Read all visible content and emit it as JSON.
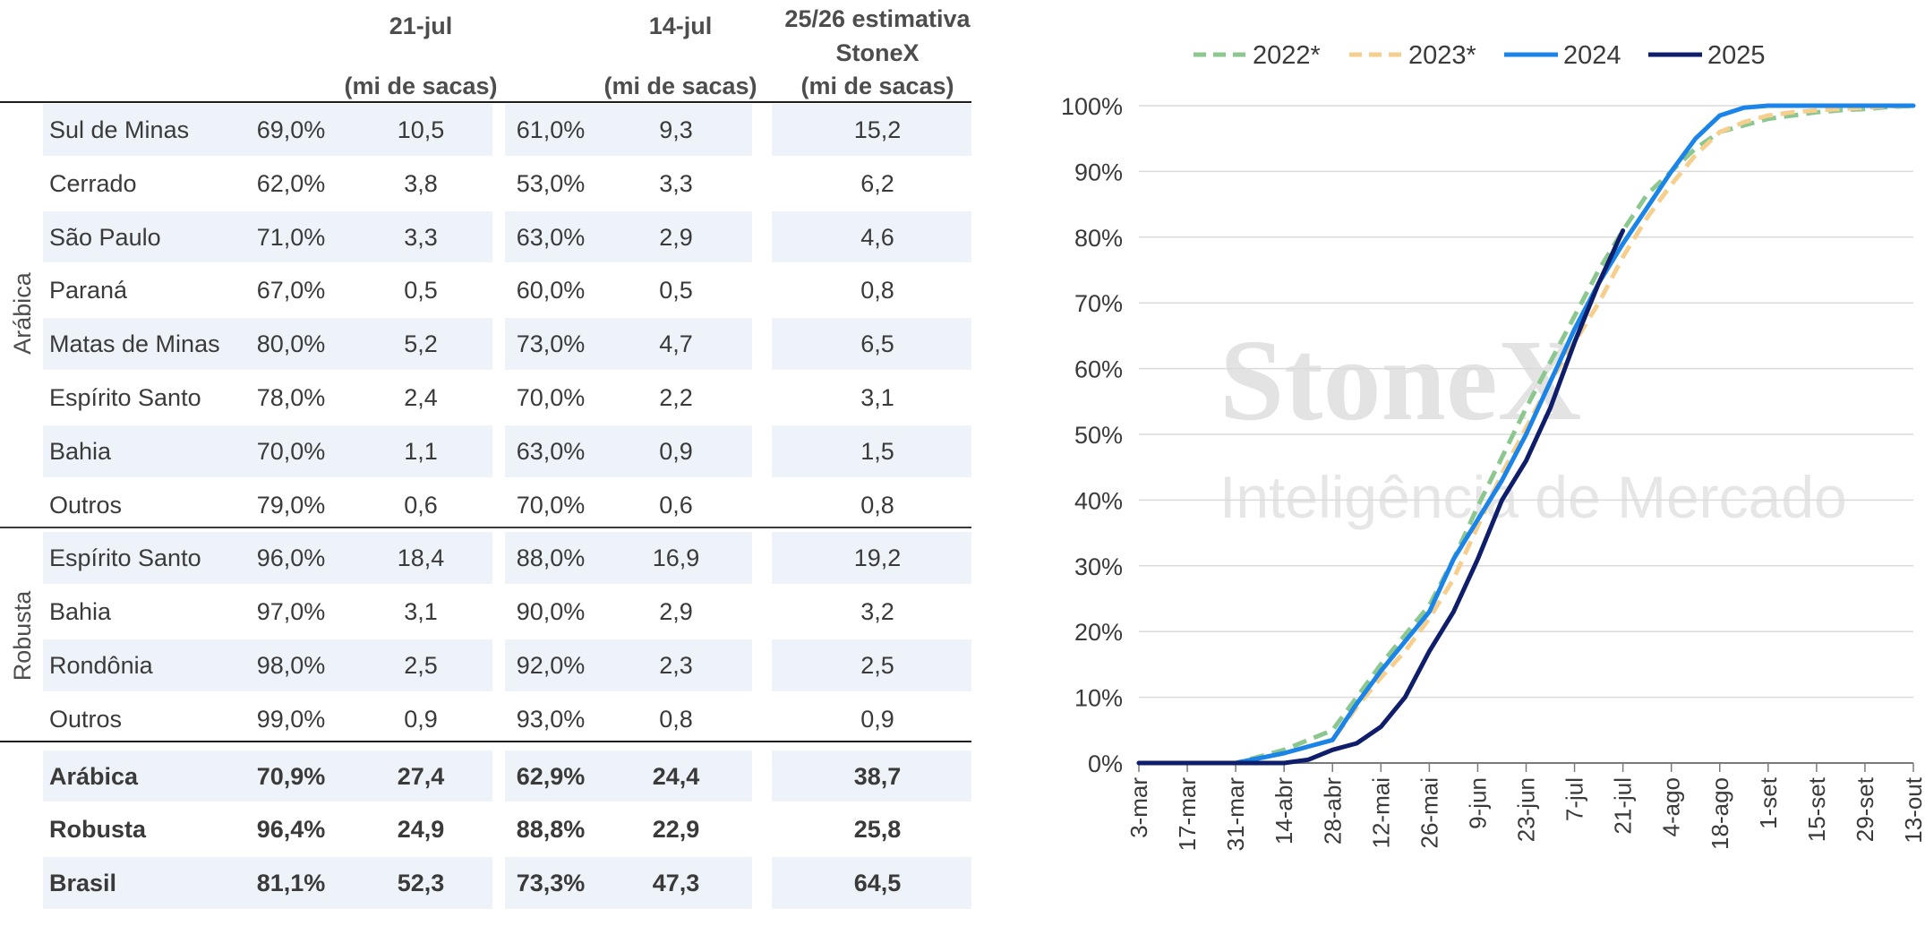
{
  "table": {
    "headers": {
      "week1": "21-jul",
      "week1_unit": "(mi de sacas)",
      "week2": "14-jul",
      "week2_unit": "(mi de sacas)",
      "estimate_line1": "25/26 estimativa",
      "estimate_line2": "StoneX",
      "estimate_unit": "(mi de sacas)"
    },
    "group_labels": {
      "arabica": "Arábica",
      "robusta": "Robusta"
    },
    "rows": [
      {
        "name": "Sul de Minas",
        "pct1": "69,0%",
        "val1": "10,5",
        "pct2": "61,0%",
        "val2": "9,3",
        "est": "15,2"
      },
      {
        "name": "Cerrado",
        "pct1": "62,0%",
        "val1": "3,8",
        "pct2": "53,0%",
        "val2": "3,3",
        "est": "6,2"
      },
      {
        "name": "São Paulo",
        "pct1": "71,0%",
        "val1": "3,3",
        "pct2": "63,0%",
        "val2": "2,9",
        "est": "4,6"
      },
      {
        "name": "Paraná",
        "pct1": "67,0%",
        "val1": "0,5",
        "pct2": "60,0%",
        "val2": "0,5",
        "est": "0,8"
      },
      {
        "name": "Matas de Minas",
        "pct1": "80,0%",
        "val1": "5,2",
        "pct2": "73,0%",
        "val2": "4,7",
        "est": "6,5"
      },
      {
        "name": "Espírito Santo",
        "pct1": "78,0%",
        "val1": "2,4",
        "pct2": "70,0%",
        "val2": "2,2",
        "est": "3,1"
      },
      {
        "name": "Bahia",
        "pct1": "70,0%",
        "val1": "1,1",
        "pct2": "63,0%",
        "val2": "0,9",
        "est": "1,5"
      },
      {
        "name": "Outros",
        "pct1": "79,0%",
        "val1": "0,6",
        "pct2": "70,0%",
        "val2": "0,6",
        "est": "0,8"
      },
      {
        "name": "Espírito Santo",
        "pct1": "96,0%",
        "val1": "18,4",
        "pct2": "88,0%",
        "val2": "16,9",
        "est": "19,2"
      },
      {
        "name": "Bahia",
        "pct1": "97,0%",
        "val1": "3,1",
        "pct2": "90,0%",
        "val2": "2,9",
        "est": "3,2"
      },
      {
        "name": "Rondônia",
        "pct1": "98,0%",
        "val1": "2,5",
        "pct2": "92,0%",
        "val2": "2,3",
        "est": "2,5"
      },
      {
        "name": "Outros",
        "pct1": "99,0%",
        "val1": "0,9",
        "pct2": "93,0%",
        "val2": "0,8",
        "est": "0,9"
      }
    ],
    "totals": [
      {
        "name": "Arábica",
        "pct1": "70,9%",
        "val1": "27,4",
        "pct2": "62,9%",
        "val2": "24,4",
        "est": "38,7"
      },
      {
        "name": "Robusta",
        "pct1": "96,4%",
        "val1": "24,9",
        "pct2": "88,8%",
        "val2": "22,9",
        "est": "25,8"
      },
      {
        "name": "Brasil",
        "pct1": "81,1%",
        "val1": "52,3",
        "pct2": "73,3%",
        "val2": "47,3",
        "est": "64,5"
      }
    ]
  },
  "watermark": {
    "brand": "StoneX",
    "tagline": "Inteligência de Mercado"
  },
  "chart_data": {
    "type": "line",
    "x": [
      "3-mar",
      "17-mar",
      "31-mar",
      "14-abr",
      "28-abr",
      "12-mai",
      "26-mai",
      "9-jun",
      "23-jun",
      "7-jul",
      "21-jul",
      "4-ago",
      "18-ago",
      "1-set",
      "15-set",
      "29-set",
      "13-out"
    ],
    "ylim": [
      0,
      100
    ],
    "yticks": [
      "0%",
      "10%",
      "20%",
      "30%",
      "40%",
      "50%",
      "60%",
      "70%",
      "80%",
      "90%",
      "100%"
    ],
    "grid": true,
    "legend_position": "top",
    "series": [
      {
        "name": "2022*",
        "color": "#8cc78f",
        "dashed": true,
        "points": [
          [
            0,
            0
          ],
          [
            1,
            0
          ],
          [
            2,
            0
          ],
          [
            3,
            2
          ],
          [
            3.5,
            3.5
          ],
          [
            4,
            5
          ],
          [
            4.5,
            10
          ],
          [
            5,
            15
          ],
          [
            5.5,
            19.5
          ],
          [
            6,
            24
          ],
          [
            6.5,
            31
          ],
          [
            7,
            39
          ],
          [
            7.5,
            46.5
          ],
          [
            8,
            54
          ],
          [
            8.5,
            61
          ],
          [
            9,
            68
          ],
          [
            9.5,
            75
          ],
          [
            10,
            81
          ],
          [
            10.5,
            86.5
          ],
          [
            11,
            90
          ],
          [
            11.5,
            93.5
          ],
          [
            12,
            96
          ],
          [
            12.5,
            97
          ],
          [
            13,
            98
          ],
          [
            13.5,
            98.5
          ],
          [
            14,
            99
          ],
          [
            14.5,
            99.3
          ],
          [
            15,
            99.5
          ],
          [
            15.5,
            99.8
          ],
          [
            16,
            100
          ]
        ]
      },
      {
        "name": "2023*",
        "color": "#f6cf8e",
        "dashed": true,
        "points": [
          [
            0,
            0
          ],
          [
            1,
            0
          ],
          [
            2,
            0
          ],
          [
            3,
            1.5
          ],
          [
            3.5,
            2.5
          ],
          [
            4,
            3.5
          ],
          [
            4.5,
            8.5
          ],
          [
            5,
            13
          ],
          [
            5.5,
            17
          ],
          [
            6,
            22
          ],
          [
            6.5,
            28
          ],
          [
            7,
            36
          ],
          [
            7.5,
            44
          ],
          [
            8,
            51
          ],
          [
            8.5,
            58
          ],
          [
            9,
            64
          ],
          [
            9.5,
            70
          ],
          [
            10,
            77
          ],
          [
            10.5,
            83
          ],
          [
            11,
            88
          ],
          [
            11.5,
            92.5
          ],
          [
            12,
            96
          ],
          [
            12.5,
            97.5
          ],
          [
            13,
            98.5
          ],
          [
            13.5,
            99
          ],
          [
            14,
            99.3
          ],
          [
            14.5,
            99.5
          ],
          [
            15,
            99.7
          ],
          [
            15.5,
            99.9
          ],
          [
            16,
            100
          ]
        ]
      },
      {
        "name": "2024",
        "color": "#1a84e8",
        "dashed": false,
        "points": [
          [
            0,
            0
          ],
          [
            1,
            0
          ],
          [
            2,
            0
          ],
          [
            3,
            1.5
          ],
          [
            3.5,
            2.5
          ],
          [
            4,
            3.5
          ],
          [
            4.5,
            9
          ],
          [
            5,
            14
          ],
          [
            5.5,
            18.5
          ],
          [
            6,
            23
          ],
          [
            6.5,
            31
          ],
          [
            7,
            37
          ],
          [
            7.5,
            43
          ],
          [
            8,
            50
          ],
          [
            8.5,
            58
          ],
          [
            9,
            66
          ],
          [
            9.5,
            73
          ],
          [
            10,
            79
          ],
          [
            10.5,
            84.5
          ],
          [
            11,
            90
          ],
          [
            11.5,
            95
          ],
          [
            12,
            98.5
          ],
          [
            12.5,
            99.7
          ],
          [
            13,
            100
          ],
          [
            14,
            100
          ],
          [
            15,
            100
          ],
          [
            16,
            100
          ]
        ]
      },
      {
        "name": "2025",
        "color": "#0f1e6b",
        "dashed": false,
        "points": [
          [
            0,
            0
          ],
          [
            1,
            0
          ],
          [
            2,
            0
          ],
          [
            3,
            0
          ],
          [
            3.5,
            0.5
          ],
          [
            4,
            2
          ],
          [
            4.5,
            3
          ],
          [
            5,
            5.5
          ],
          [
            5.5,
            10
          ],
          [
            6,
            17
          ],
          [
            6.5,
            23
          ],
          [
            7,
            31
          ],
          [
            7.5,
            40
          ],
          [
            8,
            46
          ],
          [
            8.5,
            54
          ],
          [
            9,
            64
          ],
          [
            9.5,
            73
          ],
          [
            10,
            81
          ]
        ]
      }
    ]
  }
}
